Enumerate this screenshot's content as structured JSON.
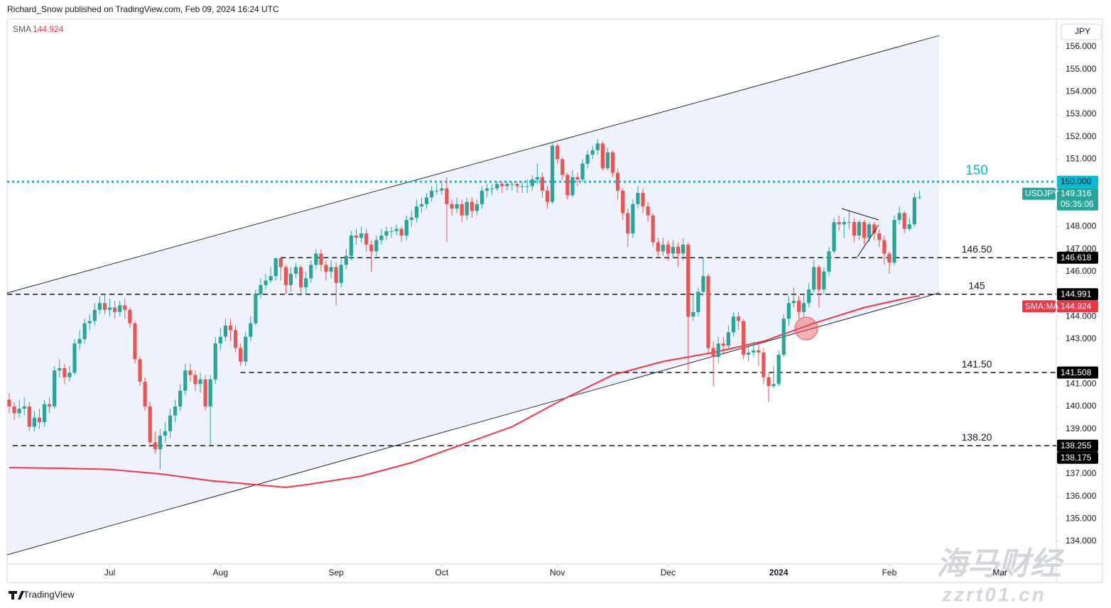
{
  "header": "Richard_Snow published on TradingView.com, Feb 09, 2024 16:24 UTC",
  "footer_logo": "TradingView",
  "watermark": [
    "海马财经",
    "zzrt01.cn"
  ],
  "chart_data": {
    "type": "candlestick",
    "symbol": "USDJPY",
    "currency": "JPY",
    "countdown": "05:35:06",
    "indicator_label": "SMA",
    "up_color": "#26a69a",
    "down_color": "#ef5350",
    "xlim": [
      -0.42,
      208.2
    ],
    "ylim": [
      132.99,
      157.23
    ],
    "xticks": [
      {
        "value": 20,
        "label": "Jul"
      },
      {
        "value": 42,
        "label": "Aug"
      },
      {
        "value": 65,
        "label": "Sep"
      },
      {
        "value": 86,
        "label": "Oct"
      },
      {
        "value": 109,
        "label": "Nov"
      },
      {
        "value": 131,
        "label": "Dec"
      },
      {
        "value": 153,
        "label": "2024"
      },
      {
        "value": 175,
        "label": "Feb"
      },
      {
        "value": 197,
        "label": "Mar"
      }
    ],
    "yticks": [
      {
        "value": 156,
        "label": "156.000"
      },
      {
        "value": 155,
        "label": "155.000"
      },
      {
        "value": 154,
        "label": "154.000"
      },
      {
        "value": 153,
        "label": "153.000"
      },
      {
        "value": 152,
        "label": "152.000"
      },
      {
        "value": 151,
        "label": "151.000"
      },
      {
        "value": 148,
        "label": "148.000"
      },
      {
        "value": 147,
        "label": "147.000"
      },
      {
        "value": 146,
        "label": "146.000"
      },
      {
        "value": 144,
        "label": "144.000"
      },
      {
        "value": 143,
        "label": "143.000"
      },
      {
        "value": 141,
        "label": "141.000"
      },
      {
        "value": 140,
        "label": "140.000"
      },
      {
        "value": 139,
        "label": "139.000"
      },
      {
        "value": 137,
        "label": "137.000"
      },
      {
        "value": 136,
        "label": "136.000"
      },
      {
        "value": 135,
        "label": "135.000"
      },
      {
        "value": 134,
        "label": "134.000"
      }
    ],
    "open": [
      140.3,
      140.0,
      139.7,
      139.9,
      140.0,
      139.1,
      139.5,
      139.3,
      140.1,
      140.0,
      141.6,
      141.7,
      141.3,
      141.5,
      142.8,
      143.0,
      143.7,
      143.8,
      144.3,
      144.6,
      144.3,
      144.4,
      144.2,
      144.5,
      144.3,
      143.7,
      142.1,
      141.1,
      140.0,
      138.4,
      138.1,
      138.7,
      138.9,
      139.6,
      140.0,
      140.7,
      141.6,
      141.4,
      141.0,
      141.2,
      140.0,
      141.2,
      142.8,
      143.1,
      143.6,
      143.4,
      142.6,
      142.0,
      143.1,
      143.7,
      145.0,
      145.4,
      145.6,
      145.8,
      146.6,
      146.2,
      145.4,
      145.9,
      146.2,
      145.3,
      145.7,
      146.3,
      146.8,
      146.3,
      146.0,
      146.2,
      145.5,
      146.3,
      146.7,
      147.6,
      147.5,
      147.7,
      147.2,
      146.9,
      147.4,
      147.6,
      147.8,
      147.8,
      147.9,
      147.6,
      148.3,
      148.4,
      148.9,
      149.0,
      149.3,
      149.6,
      149.6,
      149.7,
      149.0,
      148.8,
      149.0,
      148.5,
      149.1,
      148.7,
      149.0,
      149.6,
      149.7,
      149.7,
      149.9,
      149.8,
      149.9,
      149.9,
      149.8,
      149.8,
      149.8,
      150.1,
      150.2,
      149.6,
      149.1,
      151.6,
      151.0,
      150.3,
      149.4,
      150.2,
      150.1,
      150.8,
      151.2,
      151.4,
      151.7,
      150.6,
      151.3,
      150.4,
      149.6,
      148.6,
      147.7,
      149.0,
      149.5,
      148.9,
      148.5,
      147.3,
      146.9,
      147.2,
      146.8,
      147.1,
      146.8,
      147.2,
      144.0,
      144.2,
      145.1,
      145.8,
      142.6,
      142.2,
      142.8,
      142.7,
      143.3,
      144.0,
      143.8,
      142.3,
      142.4,
      142.5,
      142.4,
      141.3,
      140.9,
      141.0,
      142.3,
      143.9,
      144.6,
      144.7,
      144.2,
      144.6,
      145.2,
      146.2,
      145.2,
      146.0,
      146.9,
      148.2,
      148.1,
      148.2,
      148.2,
      147.6,
      148.2,
      147.5,
      148.1,
      147.7,
      147.4,
      146.8,
      146.4,
      148.3,
      148.6,
      147.9,
      148.1,
      149.3
    ],
    "high": [
      140.6,
      140.2,
      140.3,
      140.4,
      140.2,
      139.8,
      139.9,
      140.3,
      140.4,
      141.8,
      142.1,
      141.9,
      141.8,
      143.0,
      143.4,
      143.9,
      144.1,
      144.6,
      144.9,
      145.0,
      144.8,
      144.7,
      144.7,
      144.8,
      144.4,
      143.8,
      142.2,
      141.3,
      140.2,
      138.9,
      139.0,
      139.3,
      139.9,
      140.3,
      141.0,
      141.9,
      141.9,
      141.6,
      141.5,
      141.4,
      141.4,
      143.1,
      143.5,
      143.9,
      143.9,
      143.6,
      142.8,
      143.3,
      144.0,
      145.2,
      145.7,
      145.9,
      146.2,
      146.6,
      146.6,
      146.3,
      146.2,
      146.4,
      146.3,
      146.0,
      146.5,
      147.0,
      147.0,
      146.5,
      146.5,
      146.4,
      146.6,
      147.0,
      147.8,
      147.9,
      148.0,
      147.9,
      147.4,
      147.6,
      147.9,
      148.0,
      148.0,
      148.1,
      148.0,
      148.5,
      148.7,
      149.2,
      149.3,
      149.5,
      149.8,
      149.9,
      150.0,
      150.2,
      149.2,
      149.3,
      149.2,
      149.3,
      149.3,
      149.2,
      149.8,
      149.9,
      149.9,
      150.0,
      150.0,
      150.0,
      150.0,
      150.0,
      150.0,
      150.1,
      150.3,
      150.8,
      150.4,
      149.8,
      151.7,
      151.7,
      151.1,
      150.4,
      150.5,
      150.4,
      151.0,
      151.4,
      151.6,
      151.9,
      151.8,
      151.5,
      151.4,
      150.6,
      149.7,
      148.8,
      149.2,
      149.8,
      149.7,
      149.1,
      148.6,
      147.5,
      147.5,
      147.4,
      147.4,
      147.3,
      147.5,
      147.3,
      145.0,
      145.3,
      146.6,
      145.9,
      142.9,
      143.1,
      143.1,
      143.6,
      144.2,
      144.2,
      143.9,
      142.8,
      142.9,
      142.8,
      142.6,
      141.5,
      141.8,
      142.5,
      144.1,
      144.9,
      145.3,
      144.9,
      145.0,
      145.5,
      146.5,
      146.3,
      146.2,
      147.1,
      148.4,
      148.5,
      148.4,
      148.7,
      148.4,
      148.3,
      148.3,
      148.2,
      148.2,
      147.9,
      147.6,
      146.9,
      148.5,
      148.9,
      148.7,
      148.4,
      149.5,
      149.6
    ],
    "low": [
      139.7,
      139.4,
      139.5,
      139.6,
      138.9,
      138.9,
      139.0,
      139.1,
      139.7,
      139.9,
      141.3,
      141.0,
      141.1,
      141.4,
      142.5,
      142.8,
      143.4,
      143.6,
      144.1,
      144.1,
      144.0,
      143.9,
      144.0,
      143.9,
      143.5,
      141.9,
      140.9,
      139.8,
      138.2,
      137.9,
      137.2,
      138.4,
      138.6,
      139.3,
      139.8,
      140.5,
      141.1,
      140.7,
      140.6,
      139.8,
      138.3,
      141.0,
      142.5,
      142.9,
      142.9,
      142.4,
      141.8,
      141.8,
      142.9,
      143.6,
      144.8,
      145.2,
      145.5,
      145.6,
      145.6,
      145.0,
      145.1,
      145.7,
      144.9,
      145.0,
      145.5,
      146.1,
      146.0,
      145.6,
      145.7,
      144.5,
      145.3,
      146.1,
      146.5,
      147.2,
      147.3,
      146.9,
      146.0,
      146.7,
      147.2,
      147.4,
      147.5,
      147.6,
      147.3,
      147.4,
      148.0,
      148.2,
      148.6,
      148.8,
      149.1,
      149.4,
      149.4,
      147.3,
      148.5,
      148.6,
      148.2,
      148.3,
      148.4,
      148.5,
      148.8,
      149.3,
      149.4,
      149.6,
      149.5,
      149.6,
      149.6,
      149.5,
      149.5,
      149.5,
      149.6,
      149.9,
      149.3,
      148.8,
      149.0,
      150.8,
      150.1,
      149.2,
      149.3,
      149.8,
      150.0,
      150.6,
      151.0,
      151.2,
      150.5,
      150.5,
      150.2,
      149.2,
      148.3,
      147.1,
      147.5,
      148.8,
      148.6,
      148.2,
      147.1,
      146.6,
      146.7,
      146.5,
      146.6,
      146.2,
      146.5,
      141.6,
      143.8,
      144.0,
      144.9,
      142.3,
      140.9,
      141.9,
      142.3,
      142.5,
      143.1,
      143.4,
      142.1,
      142.0,
      142.2,
      141.8,
      141.0,
      140.2,
      140.8,
      140.9,
      142.2,
      143.6,
      144.4,
      143.9,
      144.0,
      144.4,
      145.1,
      144.4,
      145.0,
      145.8,
      146.8,
      147.8,
      147.5,
      147.9,
      147.3,
      147.4,
      147.2,
      147.3,
      147.4,
      147.1,
      146.3,
      145.9,
      146.3,
      148.1,
      147.7,
      147.8,
      148.0,
      149.2
    ],
    "close": [
      140.0,
      139.7,
      139.9,
      140.0,
      139.1,
      139.5,
      139.3,
      140.1,
      140.0,
      141.6,
      141.7,
      141.3,
      141.5,
      142.8,
      143.0,
      143.7,
      143.8,
      144.3,
      144.6,
      144.3,
      144.4,
      144.2,
      144.5,
      144.3,
      143.7,
      142.1,
      141.1,
      140.0,
      138.4,
      138.1,
      138.7,
      138.9,
      139.6,
      140.0,
      140.7,
      141.6,
      141.4,
      141.0,
      141.2,
      140.0,
      141.2,
      142.8,
      143.1,
      143.6,
      143.4,
      142.6,
      142.0,
      143.1,
      143.7,
      145.0,
      145.4,
      145.6,
      145.8,
      146.6,
      146.2,
      145.4,
      145.9,
      146.2,
      145.3,
      145.7,
      146.3,
      146.8,
      146.3,
      146.0,
      146.2,
      145.5,
      146.3,
      146.7,
      147.6,
      147.5,
      147.7,
      147.2,
      146.9,
      147.4,
      147.6,
      147.8,
      147.8,
      147.9,
      147.6,
      148.3,
      148.4,
      148.9,
      149.0,
      149.3,
      149.6,
      149.6,
      149.7,
      149.0,
      148.8,
      149.0,
      148.5,
      149.1,
      148.7,
      149.0,
      149.6,
      149.7,
      149.7,
      149.9,
      149.8,
      149.9,
      149.9,
      149.8,
      149.8,
      149.8,
      150.1,
      150.2,
      149.6,
      149.1,
      151.6,
      151.0,
      150.3,
      149.4,
      150.2,
      150.1,
      150.8,
      151.2,
      151.4,
      151.7,
      150.6,
      151.3,
      150.4,
      149.6,
      148.6,
      147.7,
      149.0,
      149.5,
      148.9,
      148.5,
      147.3,
      146.9,
      147.2,
      146.8,
      147.1,
      146.8,
      147.2,
      144.0,
      144.2,
      145.1,
      145.8,
      142.6,
      142.2,
      142.8,
      142.7,
      143.3,
      144.0,
      143.8,
      142.3,
      142.4,
      142.5,
      142.4,
      141.3,
      140.9,
      141.0,
      142.3,
      143.9,
      144.6,
      144.7,
      144.2,
      144.6,
      145.2,
      146.2,
      145.2,
      146.0,
      146.9,
      148.2,
      148.1,
      148.2,
      148.2,
      147.6,
      148.2,
      147.5,
      148.1,
      147.7,
      147.4,
      146.8,
      146.4,
      148.3,
      148.6,
      147.9,
      148.1,
      149.3,
      149.316
    ],
    "sma": {
      "name": "SMA:MA",
      "color": "#f23645",
      "x": [
        0,
        10,
        20,
        30,
        40,
        50,
        55,
        60,
        70,
        80,
        90,
        100,
        110,
        120,
        130,
        140,
        150,
        160,
        170,
        178,
        181
      ],
      "values": [
        137.28,
        137.25,
        137.2,
        137.0,
        136.7,
        136.5,
        136.4,
        136.55,
        136.9,
        137.5,
        138.3,
        139.1,
        140.3,
        141.4,
        142.0,
        142.4,
        142.9,
        143.7,
        144.4,
        144.8,
        144.924
      ]
    },
    "channel": {
      "x": [
        -0.42,
        184.9
      ],
      "upper": [
        145.05,
        156.5
      ],
      "lower": [
        133.4,
        145.05
      ]
    },
    "levels": [
      {
        "value": 150,
        "tag": "150.000",
        "label": "150",
        "style": "dotted",
        "color": "#00bcd4",
        "from": -0.42
      },
      {
        "value": 146.618,
        "label": "146.50",
        "style": "dashed",
        "color": "#131722",
        "from": 54
      },
      {
        "value": 144.991,
        "label": "145",
        "style": "dashed",
        "color": "#131722",
        "from": -0.42
      },
      {
        "value": 141.508,
        "label": "141.50",
        "style": "dashed",
        "color": "#131722",
        "from": 46
      },
      {
        "value": 138.255,
        "label": "138.20",
        "style": "dashed",
        "color": "#131722",
        "from": 0.7
      }
    ],
    "extra_tags": [
      {
        "value": 138.175
      }
    ]
  }
}
